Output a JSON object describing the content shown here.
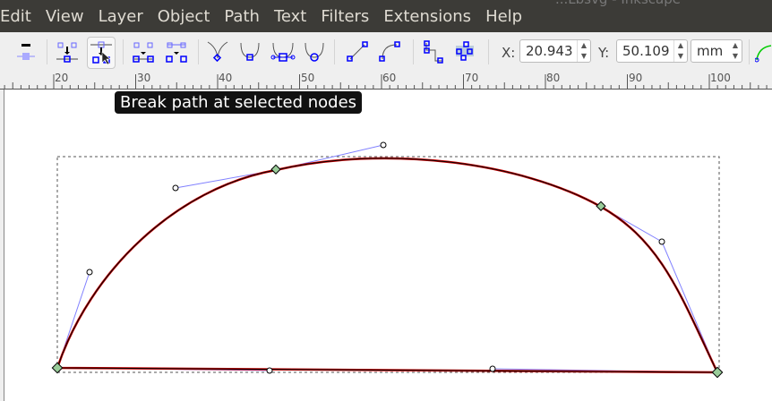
{
  "window": {
    "title": "...Lbsvg - Inkscape"
  },
  "menu": [
    "Edit",
    "View",
    "Layer",
    "Object",
    "Path",
    "Text",
    "Filters",
    "Extensions",
    "Help"
  ],
  "toolbar": {
    "x_label": "X:",
    "x_value": "20.943",
    "y_label": "Y:",
    "y_value": "50.109",
    "unit": "mm"
  },
  "tooltip": "Break path at selected nodes",
  "ruler": {
    "labels": [
      "20",
      "30",
      "40",
      "50",
      "60",
      "70",
      "80",
      "90",
      "100"
    ]
  },
  "colors": {
    "path": "#cc0000",
    "handle": "#8080ff",
    "node": "#888"
  }
}
